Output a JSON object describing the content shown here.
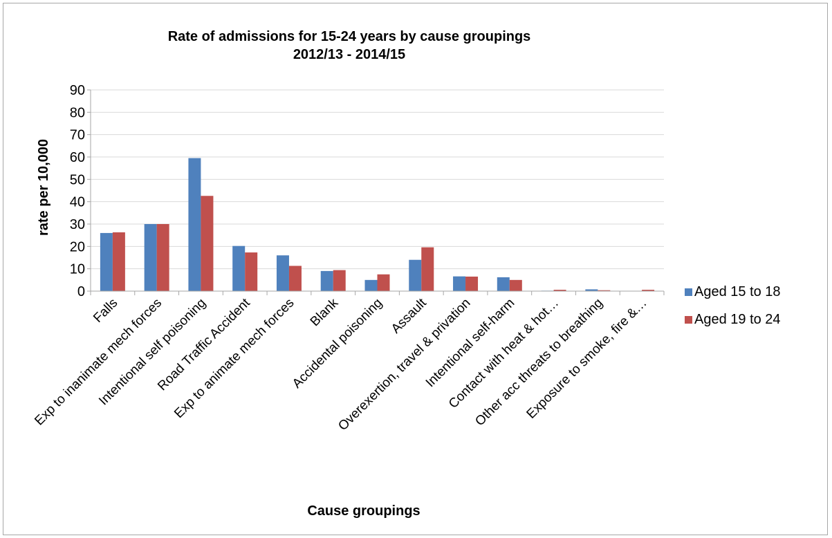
{
  "chart_data": {
    "type": "bar",
    "title": [
      "Rate of admissions for 15-24 years by cause groupings",
      "2012/13 - 2014/15"
    ],
    "xlabel": "Cause groupings",
    "ylabel": "rate per 10,000",
    "ylim": [
      0,
      90
    ],
    "yticks": [
      0,
      10,
      20,
      30,
      40,
      50,
      60,
      70,
      80,
      90
    ],
    "grid": true,
    "legend_position": "right",
    "categories": [
      "Falls",
      "Exp to inanimate mech forces",
      "Intentional self poisoning",
      "Road Traffic Accident",
      "Exp to animate mech forces",
      "Blank",
      "Accidental poisoning",
      "Assault",
      "Overexertion, travel & privation",
      "Intentional self-harm",
      "Contact with heat & hot…",
      "Other acc threats to breathing",
      "Exposure to smoke, fire &…"
    ],
    "series": [
      {
        "name": "Aged 15 to 18",
        "color": "#4f81bd",
        "values": [
          26,
          30,
          59.5,
          20.2,
          16,
          9,
          5,
          14,
          6.6,
          6.2,
          0.2,
          0.8,
          0.1
        ]
      },
      {
        "name": "Aged 19 to 24",
        "color": "#c0504d",
        "values": [
          26.3,
          30,
          42.6,
          17.3,
          11.3,
          9.4,
          7.5,
          19.6,
          6.5,
          5,
          0.6,
          0.4,
          0.6
        ]
      }
    ]
  }
}
